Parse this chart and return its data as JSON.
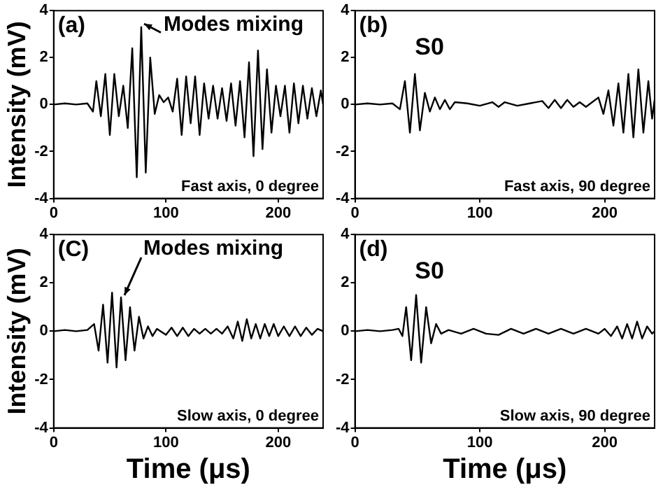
{
  "chart_data": [
    {
      "type": "line",
      "title": "(a)",
      "ylabel": "Intensity (mV)",
      "color": "#000000",
      "marker": "none",
      "xlim": [
        0,
        240
      ],
      "xticks": [
        0,
        100,
        200
      ],
      "ylim": [
        -4,
        4
      ],
      "yticks": [
        -4,
        -2,
        0,
        2,
        4
      ],
      "annotations": [
        {
          "text": "Modes mixing",
          "x": 78,
          "y": 3.3
        },
        "Fast axis, 0 degree"
      ],
      "x": [
        0,
        10,
        20,
        30,
        35,
        38,
        42,
        46,
        50,
        54,
        58,
        62,
        66,
        70,
        74,
        78,
        82,
        86,
        90,
        94,
        98,
        102,
        106,
        110,
        114,
        118,
        122,
        126,
        130,
        134,
        138,
        142,
        146,
        150,
        154,
        158,
        162,
        166,
        170,
        174,
        178,
        182,
        186,
        190,
        194,
        198,
        202,
        206,
        210,
        214,
        218,
        222,
        226,
        230,
        234,
        238,
        240
      ],
      "values": [
        0,
        0.05,
        0,
        0.05,
        -0.3,
        1.0,
        -0.5,
        1.3,
        -1.3,
        1.3,
        -0.5,
        0.8,
        -1.0,
        2.4,
        -3.1,
        3.3,
        -2.9,
        2.0,
        -0.4,
        0.4,
        0.1,
        0.3,
        -0.3,
        1.1,
        -1.3,
        1.2,
        -0.8,
        1.2,
        -1.3,
        0.9,
        -0.6,
        0.8,
        -0.6,
        0.7,
        -0.7,
        0.9,
        -0.9,
        1.0,
        -1.4,
        1.8,
        -2.2,
        2.3,
        -1.9,
        1.5,
        -1.2,
        0.8,
        -0.5,
        0.8,
        -1.2,
        0.9,
        -0.8,
        0.8,
        -0.6,
        0.7,
        -0.5,
        0.6,
        0
      ]
    },
    {
      "type": "line",
      "title": "(b)",
      "color": "#000000",
      "marker": "none",
      "xlim": [
        0,
        240
      ],
      "xticks": [
        0,
        100,
        200
      ],
      "ylim": [
        -4,
        4
      ],
      "yticks": [
        -4,
        -2,
        0,
        2,
        4
      ],
      "annotations": [
        "S0",
        "Fast axis, 90 degree"
      ],
      "x": [
        0,
        10,
        20,
        30,
        36,
        40,
        44,
        48,
        52,
        56,
        60,
        64,
        68,
        72,
        76,
        80,
        90,
        100,
        110,
        115,
        120,
        130,
        140,
        150,
        155,
        160,
        165,
        170,
        175,
        180,
        185,
        190,
        195,
        199,
        203,
        207,
        211,
        215,
        219,
        223,
        227,
        231,
        235,
        238,
        240
      ],
      "values": [
        0,
        0.05,
        0,
        0.05,
        -0.2,
        1.0,
        -1.2,
        1.3,
        -1.1,
        0.5,
        -0.3,
        0.3,
        -0.2,
        0.2,
        -0.2,
        0.1,
        0.05,
        -0.05,
        0.1,
        -0.1,
        0.1,
        -0.05,
        0.05,
        0.15,
        -0.15,
        0.2,
        -0.15,
        0.2,
        -0.1,
        0.1,
        -0.1,
        0.1,
        0.3,
        -0.4,
        0.6,
        -0.9,
        0.9,
        -1.2,
        1.3,
        -1.4,
        1.5,
        -1.2,
        1.0,
        -0.6,
        0.2
      ]
    },
    {
      "type": "line",
      "title": "(C)",
      "ylabel": "Intensity (mV)",
      "xlabel": "Time (μs)",
      "color": "#000000",
      "marker": "none",
      "xlim": [
        0,
        240
      ],
      "xticks": [
        0,
        100,
        200
      ],
      "ylim": [
        -4,
        4
      ],
      "yticks": [
        -4,
        -2,
        0,
        2,
        4
      ],
      "annotations": [
        {
          "text": "Modes mixing",
          "x": 60,
          "y": 1.4
        },
        "Slow axis, 0 degree"
      ],
      "x": [
        0,
        10,
        20,
        30,
        36,
        40,
        44,
        48,
        52,
        56,
        60,
        64,
        68,
        72,
        76,
        80,
        84,
        88,
        92,
        100,
        105,
        110,
        115,
        120,
        125,
        130,
        135,
        140,
        145,
        150,
        155,
        160,
        164,
        168,
        172,
        176,
        180,
        184,
        188,
        192,
        196,
        200,
        205,
        210,
        215,
        220,
        225,
        230,
        235,
        240
      ],
      "values": [
        0,
        0.05,
        0,
        0.05,
        0.3,
        -0.8,
        1.1,
        -1.3,
        1.6,
        -1.5,
        1.4,
        -1.2,
        1.0,
        -0.8,
        0.6,
        -0.3,
        0.2,
        -0.2,
        0.1,
        -0.15,
        0.15,
        -0.2,
        0.15,
        -0.2,
        0.1,
        -0.1,
        0.1,
        -0.1,
        0.1,
        -0.1,
        0.2,
        -0.3,
        0.4,
        -0.4,
        0.5,
        -0.3,
        0.3,
        -0.3,
        0.3,
        -0.2,
        0.3,
        -0.2,
        0.2,
        -0.2,
        0.2,
        -0.2,
        0.15,
        -0.15,
        0.1,
        0
      ]
    },
    {
      "type": "line",
      "title": "(d)",
      "xlabel": "Time (μs)",
      "color": "#000000",
      "marker": "none",
      "xlim": [
        0,
        240
      ],
      "xticks": [
        0,
        100,
        200
      ],
      "ylim": [
        -4,
        4
      ],
      "yticks": [
        -4,
        -2,
        0,
        2,
        4
      ],
      "annotations": [
        "S0",
        "Slow axis, 90 degree"
      ],
      "x": [
        0,
        10,
        20,
        30,
        35,
        38,
        41,
        45,
        49,
        53,
        57,
        61,
        65,
        69,
        75,
        85,
        95,
        105,
        115,
        125,
        135,
        145,
        155,
        165,
        175,
        185,
        195,
        200,
        205,
        210,
        214,
        218,
        222,
        226,
        230,
        234,
        238,
        240
      ],
      "values": [
        0,
        0.05,
        0,
        0.05,
        0.1,
        -0.2,
        1.0,
        -1.2,
        1.5,
        -1.3,
        1.0,
        -0.5,
        0.3,
        -0.1,
        0.05,
        -0.1,
        0.1,
        -0.1,
        -0.15,
        0.1,
        -0.1,
        0.1,
        -0.1,
        0.1,
        -0.1,
        0.1,
        -0.1,
        0.1,
        -0.2,
        0.2,
        -0.3,
        0.3,
        -0.3,
        0.4,
        -0.3,
        0.2,
        -0.1,
        0
      ]
    }
  ]
}
